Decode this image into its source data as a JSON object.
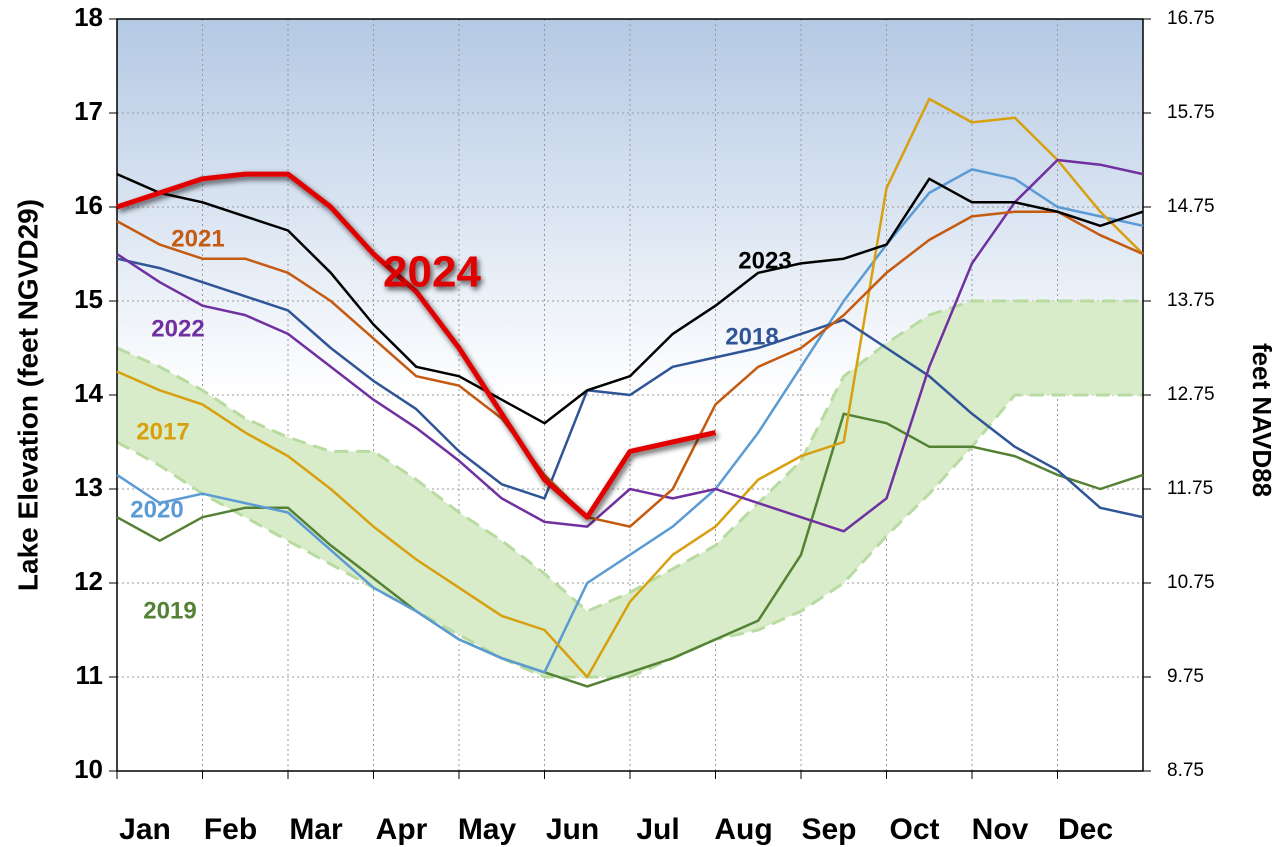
{
  "chart_data": {
    "type": "line",
    "y_label": "Lake Elevation (feet NGVD29)",
    "y2_label": "feet NAVD88",
    "x": [
      0,
      0.5,
      1,
      1.5,
      2,
      2.5,
      3,
      3.5,
      4,
      4.5,
      5,
      5.5,
      6,
      6.5,
      7,
      7.5,
      8,
      8.5,
      9,
      9.5,
      10,
      10.5,
      11,
      11.5,
      12
    ],
    "xlim": [
      0,
      12
    ],
    "xticks": [
      {
        "value": 0,
        "label": "Jan"
      },
      {
        "value": 1,
        "label": "Feb"
      },
      {
        "value": 2,
        "label": "Mar"
      },
      {
        "value": 3,
        "label": "Apr"
      },
      {
        "value": 4,
        "label": "May"
      },
      {
        "value": 5,
        "label": "Jun"
      },
      {
        "value": 6,
        "label": "Jul"
      },
      {
        "value": 7,
        "label": "Aug"
      },
      {
        "value": 8,
        "label": "Sep"
      },
      {
        "value": 9,
        "label": "Oct"
      },
      {
        "value": 10,
        "label": "Nov"
      },
      {
        "value": 11,
        "label": "Dec"
      }
    ],
    "ylim": [
      10,
      18
    ],
    "yticks": [
      10,
      11,
      12,
      13,
      14,
      15,
      16,
      17,
      18
    ],
    "y2lim": [
      8.75,
      16.75
    ],
    "y2ticks": [
      8.75,
      9.75,
      10.75,
      11.75,
      12.75,
      13.75,
      14.75,
      15.75,
      16.75
    ],
    "grid": true,
    "band": {
      "color": "#d9ecc9",
      "upper": [
        14.5,
        14.3,
        14.05,
        13.75,
        13.55,
        13.4,
        13.4,
        13.1,
        12.75,
        12.45,
        12.1,
        11.7,
        11.9,
        12.15,
        12.4,
        12.85,
        13.3,
        14.2,
        14.55,
        14.85,
        15.0,
        15.0,
        15.0,
        15.0,
        15.0
      ],
      "lower": [
        13.5,
        13.25,
        12.95,
        12.7,
        12.45,
        12.2,
        11.95,
        11.7,
        11.45,
        11.2,
        11.0,
        11.0,
        11.0,
        11.2,
        11.4,
        11.5,
        11.7,
        12.0,
        12.5,
        12.95,
        13.45,
        14.0,
        14.0,
        14.0,
        14.0
      ]
    },
    "series": [
      {
        "name": "2019",
        "color": "#548235",
        "values": [
          12.7,
          12.45,
          12.7,
          12.8,
          12.8,
          12.4,
          12.05,
          11.7,
          11.4,
          11.2,
          11.05,
          10.9,
          11.05,
          11.2,
          11.4,
          11.6,
          12.3,
          13.8,
          13.7,
          13.45,
          13.45,
          13.35,
          13.15,
          13.0,
          13.15
        ]
      },
      {
        "name": "2020",
        "color": "#5b9bd5",
        "values": [
          13.15,
          12.85,
          12.95,
          12.85,
          12.75,
          12.35,
          11.95,
          11.7,
          11.4,
          11.2,
          11.05,
          12.0,
          12.3,
          12.6,
          13.0,
          13.6,
          14.3,
          15.0,
          15.6,
          16.15,
          16.4,
          16.3,
          16.0,
          15.9,
          15.8
        ]
      },
      {
        "name": "2017",
        "color": "#d8a00e",
        "values": [
          14.25,
          14.05,
          13.9,
          13.6,
          13.35,
          13.0,
          12.6,
          12.25,
          11.95,
          11.65,
          11.5,
          11.0,
          11.8,
          12.3,
          12.6,
          13.1,
          13.35,
          13.5,
          16.2,
          17.15,
          16.9,
          16.95,
          16.5,
          15.95,
          15.5
        ]
      },
      {
        "name": "2018",
        "color": "#2f5597",
        "values": [
          15.45,
          15.35,
          15.2,
          15.05,
          14.9,
          14.5,
          14.15,
          13.85,
          13.4,
          13.05,
          12.9,
          14.05,
          14.0,
          14.3,
          14.4,
          14.5,
          14.65,
          14.8,
          14.5,
          14.2,
          13.8,
          13.45,
          13.2,
          12.8,
          12.7
        ]
      },
      {
        "name": "2022",
        "color": "#7030a0",
        "values": [
          15.5,
          15.2,
          14.95,
          14.85,
          14.65,
          14.3,
          13.95,
          13.65,
          13.3,
          12.9,
          12.65,
          12.6,
          13.0,
          12.9,
          13.0,
          12.85,
          12.7,
          12.55,
          12.9,
          14.3,
          15.4,
          16.05,
          16.5,
          16.45,
          16.35
        ]
      },
      {
        "name": "2021",
        "color": "#c55a11",
        "values": [
          15.85,
          15.6,
          15.45,
          15.45,
          15.3,
          15.0,
          14.6,
          14.2,
          14.1,
          13.75,
          13.15,
          12.7,
          12.6,
          13.0,
          13.9,
          14.3,
          14.5,
          14.85,
          15.3,
          15.65,
          15.9,
          15.95,
          15.95,
          15.7,
          15.5
        ]
      },
      {
        "name": "2023",
        "color": "#000000",
        "values": [
          16.35,
          16.15,
          16.05,
          15.9,
          15.75,
          15.3,
          14.75,
          14.3,
          14.2,
          13.95,
          13.7,
          14.05,
          14.2,
          14.65,
          14.95,
          15.3,
          15.4,
          15.45,
          15.6,
          16.3,
          16.05,
          16.05,
          15.95,
          15.8,
          15.95
        ]
      },
      {
        "name": "2024",
        "color": "#e00000",
        "values": [
          16.0,
          16.15,
          16.3,
          16.35,
          16.35,
          16.0,
          15.5,
          15.1,
          14.5,
          13.8,
          13.1,
          12.7,
          13.4,
          13.5,
          13.6,
          null,
          null,
          null,
          null,
          null,
          null,
          null,
          null,
          null,
          null
        ]
      }
    ]
  }
}
